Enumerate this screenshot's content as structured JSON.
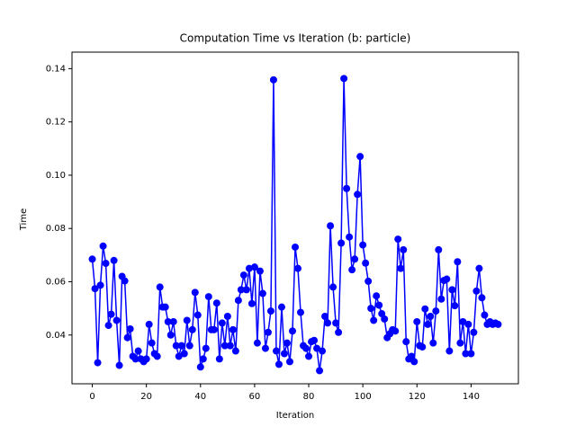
{
  "chart_data": {
    "type": "line",
    "title": "Computation Time vs Iteration (b: particle)",
    "x_label": "Iteration",
    "y_label": "Time",
    "x": [
      0,
      1,
      2,
      3,
      4,
      5,
      6,
      7,
      8,
      9,
      10,
      11,
      12,
      13,
      14,
      15,
      16,
      17,
      18,
      19,
      20,
      21,
      22,
      23,
      24,
      25,
      26,
      27,
      28,
      29,
      30,
      31,
      32,
      33,
      34,
      35,
      36,
      37,
      38,
      39,
      40,
      41,
      42,
      43,
      44,
      45,
      46,
      47,
      48,
      49,
      50,
      51,
      52,
      53,
      54,
      55,
      56,
      57,
      58,
      59,
      60,
      61,
      62,
      63,
      64,
      65,
      66,
      67,
      68,
      69,
      70,
      71,
      72,
      73,
      74,
      75,
      76,
      77,
      78,
      79,
      80,
      81,
      82,
      83,
      84,
      85,
      86,
      87,
      88,
      89,
      90,
      91,
      92,
      93,
      94,
      95,
      96,
      97,
      98,
      99,
      100,
      101,
      102,
      103,
      104,
      105,
      106,
      107,
      108,
      109,
      110,
      111,
      112,
      113,
      114,
      115,
      116,
      117,
      118,
      119,
      120,
      121,
      122,
      123,
      124,
      125,
      126,
      127,
      128,
      129,
      130,
      131,
      132,
      133,
      134,
      135,
      136,
      137,
      138,
      139,
      140,
      141,
      142,
      143,
      144,
      145,
      146,
      147,
      148,
      149,
      150
    ],
    "series": [
      {
        "name": "particle",
        "color": "#0000ff",
        "values": [
          0.0685,
          0.0574,
          0.0296,
          0.0587,
          0.0734,
          0.0669,
          0.0436,
          0.0478,
          0.068,
          0.0455,
          0.0286,
          0.062,
          0.0603,
          0.039,
          0.0423,
          0.032,
          0.031,
          0.034,
          0.031,
          0.03,
          0.031,
          0.044,
          0.037,
          0.033,
          0.032,
          0.058,
          0.0505,
          0.0505,
          0.045,
          0.04,
          0.045,
          0.036,
          0.032,
          0.036,
          0.033,
          0.0455,
          0.036,
          0.042,
          0.056,
          0.0475,
          0.028,
          0.031,
          0.035,
          0.0544,
          0.042,
          0.042,
          0.052,
          0.031,
          0.0445,
          0.036,
          0.047,
          0.036,
          0.042,
          0.034,
          0.053,
          0.057,
          0.0625,
          0.057,
          0.065,
          0.0518,
          0.0655,
          0.037,
          0.064,
          0.0556,
          0.035,
          0.041,
          0.049,
          0.1358,
          0.034,
          0.029,
          0.0505,
          0.033,
          0.037,
          0.03,
          0.0415,
          0.073,
          0.065,
          0.0485,
          0.036,
          0.035,
          0.032,
          0.0375,
          0.038,
          0.035,
          0.0266,
          0.034,
          0.047,
          0.0445,
          0.081,
          0.058,
          0.0445,
          0.041,
          0.0745,
          0.1363,
          0.095,
          0.0768,
          0.0645,
          0.0685,
          0.0928,
          0.107,
          0.0738,
          0.067,
          0.0602,
          0.05,
          0.0455,
          0.0547,
          0.0512,
          0.048,
          0.046,
          0.039,
          0.0405,
          0.042,
          0.0415,
          0.076,
          0.065,
          0.072,
          0.0375,
          0.031,
          0.032,
          0.03,
          0.045,
          0.036,
          0.0355,
          0.0498,
          0.044,
          0.047,
          0.037,
          0.049,
          0.072,
          0.0535,
          0.0605,
          0.061,
          0.034,
          0.057,
          0.051,
          0.0675,
          0.037,
          0.045,
          0.033,
          0.044,
          0.033,
          0.041,
          0.0565,
          0.065,
          0.054,
          0.0475,
          0.044,
          0.045,
          0.044,
          0.0445,
          0.044
        ]
      }
    ],
    "xlim": [
      -7.5,
      157.5
    ],
    "xticks": [
      0,
      20,
      40,
      60,
      80,
      100,
      120,
      140
    ],
    "ylim": [
      0.0217,
      0.1462
    ],
    "yticks": [
      0.04,
      0.06,
      0.08,
      {
        "value": 0.1,
        "label": "0.10"
      },
      0.12,
      0.14
    ],
    "grid": false
  }
}
